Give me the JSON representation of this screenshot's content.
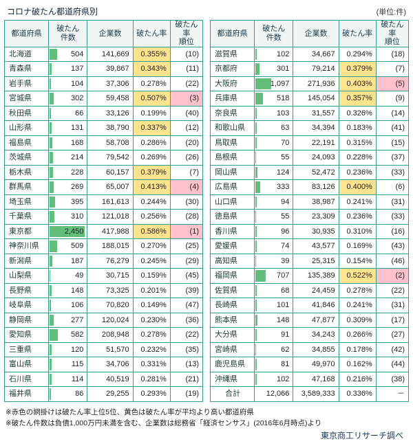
{
  "credit": "東京商工リサーチ調べ",
  "notes": [
    "※赤色の網掛けは破たん率上位5位、黄色は破たん率が平均より高い都道府県",
    "※破たん件数は負債1,000万円未満を含む、企業数は総務省「経済センサス」(2016年6月時点)より"
  ],
  "colors": {
    "border": "#2f9e8e",
    "header_bg": "#eef5f2",
    "yellow": "#ffe38f",
    "pink": "#ffc2cd",
    "bar": "#63be7b",
    "credit": "#17365d"
  },
  "chart_data": {
    "type": "table",
    "title": "コロナ破たん都道府県別",
    "unit": "(単位:件)",
    "columns": [
      "都道府県",
      "破たん\n件数",
      "企業数",
      "破たん率",
      "破たん率\n順位"
    ],
    "legend": {
      "red_shading": "破たん率上位5位",
      "yellow_shading": "破たん率が平均より高い都道府県",
      "green_bar": "破たん件数の大きさ"
    },
    "left_rows": [
      {
        "pref": "北海道",
        "count": "504",
        "companies": "141,669",
        "rate": "0.355%",
        "rank": "(10)",
        "rate_hl": true
      },
      {
        "pref": "青森県",
        "count": "137",
        "companies": "39,867",
        "rate": "0.343%",
        "rank": "(11)",
        "rate_hl": true
      },
      {
        "pref": "岩手県",
        "count": "104",
        "companies": "37,306",
        "rate": "0.278%",
        "rank": "(22)"
      },
      {
        "pref": "宮城県",
        "count": "302",
        "companies": "59,458",
        "rate": "0.507%",
        "rank": "(3)",
        "rate_hl": true,
        "rank_hl": true
      },
      {
        "pref": "秋田県",
        "count": "66",
        "companies": "33,126",
        "rate": "0.199%",
        "rank": "(40)"
      },
      {
        "pref": "山形県",
        "count": "131",
        "companies": "38,790",
        "rate": "0.337%",
        "rank": "(12)",
        "rate_hl": true
      },
      {
        "pref": "福島県",
        "count": "168",
        "companies": "58,708",
        "rate": "0.286%",
        "rank": "(20)"
      },
      {
        "pref": "茨城県",
        "count": "214",
        "companies": "79,542",
        "rate": "0.269%",
        "rank": "(26)"
      },
      {
        "pref": "栃木県",
        "count": "228",
        "companies": "60,157",
        "rate": "0.379%",
        "rank": "(7)",
        "rate_hl": true
      },
      {
        "pref": "群馬県",
        "count": "269",
        "companies": "65,007",
        "rate": "0.413%",
        "rank": "(4)",
        "rate_hl": true,
        "rank_hl": true
      },
      {
        "pref": "埼玉県",
        "count": "395",
        "companies": "161,613",
        "rate": "0.244%",
        "rank": "(30)"
      },
      {
        "pref": "千葉県",
        "count": "310",
        "companies": "121,018",
        "rate": "0.256%",
        "rank": "(28)"
      },
      {
        "pref": "東京都",
        "count": "2,450",
        "companies": "417,988",
        "rate": "0.586%",
        "rank": "(1)",
        "rate_hl": true,
        "rank_hl": true
      },
      {
        "pref": "神奈川県",
        "count": "509",
        "companies": "188,015",
        "rate": "0.270%",
        "rank": "(25)"
      },
      {
        "pref": "新潟県",
        "count": "187",
        "companies": "76,279",
        "rate": "0.245%",
        "rank": "(29)"
      },
      {
        "pref": "山梨県",
        "count": "49",
        "companies": "30,715",
        "rate": "0.159%",
        "rank": "(45)"
      },
      {
        "pref": "長野県",
        "count": "148",
        "companies": "73,325",
        "rate": "0.201%",
        "rank": "(39)"
      },
      {
        "pref": "岐阜県",
        "count": "106",
        "companies": "70,820",
        "rate": "0.149%",
        "rank": "(47)"
      },
      {
        "pref": "静岡県",
        "count": "277",
        "companies": "120,024",
        "rate": "0.230%",
        "rank": "(36)"
      },
      {
        "pref": "愛知県",
        "count": "582",
        "companies": "208,948",
        "rate": "0.278%",
        "rank": "(22)"
      },
      {
        "pref": "三重県",
        "count": "120",
        "companies": "51,570",
        "rate": "0.232%",
        "rank": "(35)"
      },
      {
        "pref": "富山県",
        "count": "115",
        "companies": "34,706",
        "rate": "0.331%",
        "rank": "(13)"
      },
      {
        "pref": "石川県",
        "count": "114",
        "companies": "40,519",
        "rate": "0.281%",
        "rank": "(21)"
      },
      {
        "pref": "福井県",
        "count": "86",
        "companies": "29,255",
        "rate": "0.293%",
        "rank": "(19)"
      }
    ],
    "right_rows": [
      {
        "pref": "滋賀県",
        "count": "102",
        "companies": "34,667",
        "rate": "0.294%",
        "rank": "(18)"
      },
      {
        "pref": "京都府",
        "count": "301",
        "companies": "79,214",
        "rate": "0.379%",
        "rank": "(7)",
        "rate_hl": true
      },
      {
        "pref": "大阪府",
        "count": "1,097",
        "companies": "271,936",
        "rate": "0.403%",
        "rank": "(5)",
        "rate_hl": true,
        "rank_hl": true
      },
      {
        "pref": "兵庫県",
        "count": "518",
        "companies": "145,054",
        "rate": "0.357%",
        "rank": "(9)",
        "rate_hl": true
      },
      {
        "pref": "奈良県",
        "count": "103",
        "companies": "31,557",
        "rate": "0.326%",
        "rank": "(14)"
      },
      {
        "pref": "和歌山県",
        "count": "63",
        "companies": "34,394",
        "rate": "0.183%",
        "rank": "(41)"
      },
      {
        "pref": "鳥取県",
        "count": "70",
        "companies": "22,191",
        "rate": "0.315%",
        "rank": "(15)"
      },
      {
        "pref": "島根県",
        "count": "55",
        "companies": "24,093",
        "rate": "0.228%",
        "rank": "(37)"
      },
      {
        "pref": "岡山県",
        "count": "124",
        "companies": "52,472",
        "rate": "0.236%",
        "rank": "(33)"
      },
      {
        "pref": "広島県",
        "count": "333",
        "companies": "83,126",
        "rate": "0.400%",
        "rank": "(6)",
        "rate_hl": true
      },
      {
        "pref": "山口県",
        "count": "94",
        "companies": "38,987",
        "rate": "0.241%",
        "rank": "(31)"
      },
      {
        "pref": "徳島県",
        "count": "55",
        "companies": "23,309",
        "rate": "0.236%",
        "rank": "(33)"
      },
      {
        "pref": "香川県",
        "count": "96",
        "companies": "30,935",
        "rate": "0.310%",
        "rank": "(16)"
      },
      {
        "pref": "愛媛県",
        "count": "74",
        "companies": "43,577",
        "rate": "0.169%",
        "rank": "(43)"
      },
      {
        "pref": "高知県",
        "count": "39",
        "companies": "25,315",
        "rate": "0.154%",
        "rank": "(46)"
      },
      {
        "pref": "福岡県",
        "count": "707",
        "companies": "135,389",
        "rate": "0.522%",
        "rank": "(2)",
        "rate_hl": true,
        "rank_hl": true
      },
      {
        "pref": "佐賀県",
        "count": "68",
        "companies": "24,459",
        "rate": "0.278%",
        "rank": "(22)"
      },
      {
        "pref": "長崎県",
        "count": "101",
        "companies": "41,846",
        "rate": "0.241%",
        "rank": "(31)"
      },
      {
        "pref": "熊本県",
        "count": "148",
        "companies": "47,877",
        "rate": "0.309%",
        "rank": "(17)"
      },
      {
        "pref": "大分県",
        "count": "91",
        "companies": "34,243",
        "rate": "0.266%",
        "rank": "(27)"
      },
      {
        "pref": "宮崎県",
        "count": "62",
        "companies": "34,855",
        "rate": "0.178%",
        "rank": "(42)"
      },
      {
        "pref": "鹿児島県",
        "count": "81",
        "companies": "49,970",
        "rate": "0.162%",
        "rank": "(44)"
      },
      {
        "pref": "沖縄県",
        "count": "102",
        "companies": "47,168",
        "rate": "0.216%",
        "rank": "(38)"
      },
      {
        "pref": "合計",
        "count": "12,066",
        "companies": "3,589,333",
        "rate": "0.336%",
        "rank": "－",
        "total": true
      }
    ]
  }
}
